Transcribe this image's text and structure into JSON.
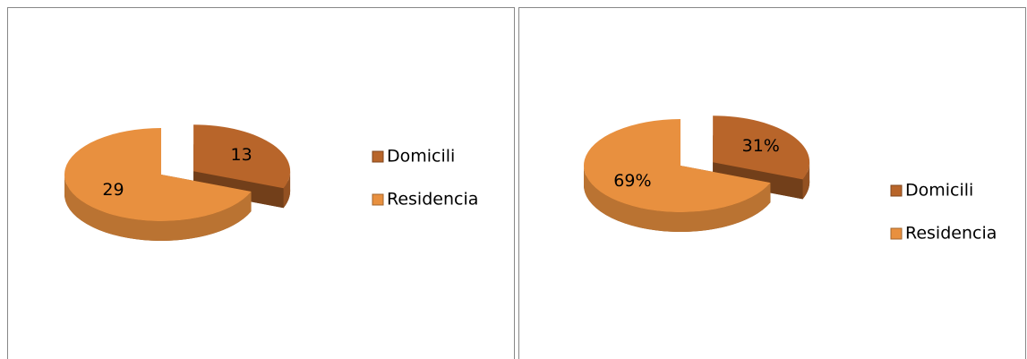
{
  "chart_data": [
    {
      "type": "pie",
      "categories": [
        "Domicili",
        "Residencia"
      ],
      "values": [
        13,
        29
      ],
      "colors": [
        "#b8652a",
        "#e8903f"
      ]
    },
    {
      "type": "pie",
      "categories": [
        "Domicili",
        "Residencia"
      ],
      "values": [
        31,
        69
      ],
      "value_labels": [
        "31%",
        "69%"
      ],
      "colors": [
        "#b8652a",
        "#e8903f"
      ]
    }
  ]
}
